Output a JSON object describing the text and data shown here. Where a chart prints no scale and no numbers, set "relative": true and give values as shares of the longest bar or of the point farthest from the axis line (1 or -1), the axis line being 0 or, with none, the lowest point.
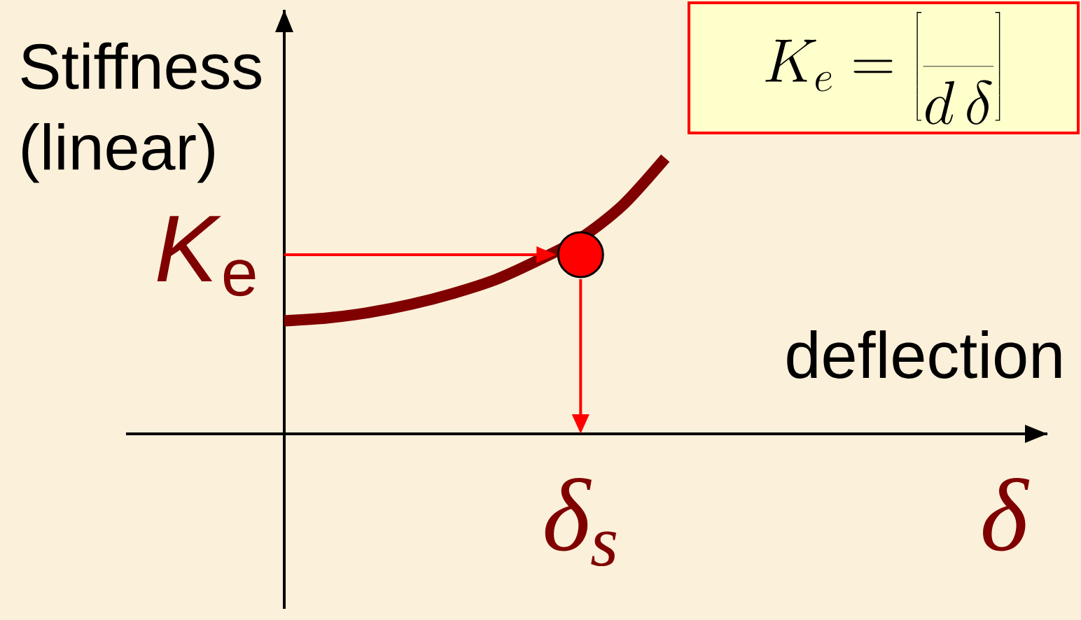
{
  "chart_data": {
    "type": "line",
    "relative": true,
    "xlabel": "deflection",
    "ylabel": "Stiffness (linear)",
    "categories": [
      null,
      null,
      null,
      null,
      null,
      null,
      null,
      "δ$_{s}$",
      null,
      null,
      null,
      null,
      null,
      null,
      null,
      null,
      null,
      "δ"
    ],
    "series": [
      {
        "color": "#800000",
        "values": [
          0.41,
          0.42,
          0.44,
          0.47,
          0.51,
          0.56,
          0.63,
          0.71,
          0.83,
          1,
          null,
          null,
          null,
          null,
          null,
          null,
          null,
          null
        ]
      },
      {
        "type": "scatter",
        "color": "#ff0000",
        "marker": "circle",
        "values": [
          null,
          null,
          null,
          null,
          null,
          null,
          null,
          0.65,
          null,
          null,
          null,
          null,
          null,
          null,
          null,
          null,
          null,
          null
        ]
      }
    ],
    "ref_lines": [
      {
        "axis": "y",
        "value": 0.65,
        "label": "*K*$_{e}$",
        "color": "#ff0000"
      }
    ],
    "annotations": [
      "K_e = \\left[ \\frac{}{d\\,\\delta} \\right]"
    ]
  }
}
